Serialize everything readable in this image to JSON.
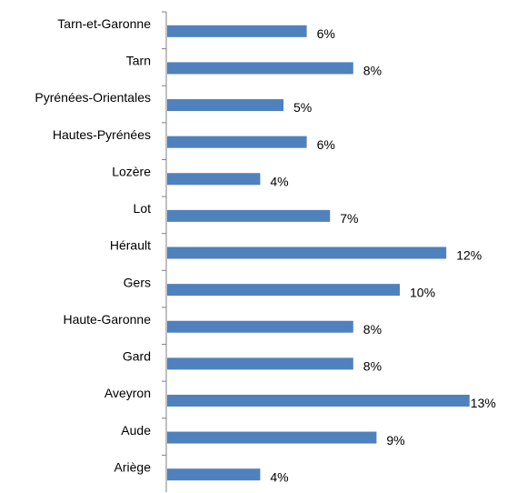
{
  "chart_data": {
    "type": "bar",
    "orientation": "horizontal",
    "title": "",
    "xlabel": "",
    "ylabel": "",
    "xlim": [
      0,
      13
    ],
    "grid": false,
    "legend": "none",
    "bar_color": "#4F81BD",
    "categories": [
      "Ariège",
      "Aude",
      "Aveyron",
      "Gard",
      "Haute-Garonne",
      "Gers",
      "Hérault",
      "Lot",
      "Lozère",
      "Hautes-Pyrénées",
      "Pyrénées-Orientales",
      "Tarn",
      "Tarn-et-Garonne"
    ],
    "values": [
      4,
      9,
      13,
      8,
      8,
      10,
      12,
      7,
      4,
      6,
      5,
      8,
      6
    ],
    "value_labels": [
      "4%",
      "9%",
      "13%",
      "8%",
      "8%",
      "10%",
      "12%",
      "7%",
      "4%",
      "6%",
      "5%",
      "8%",
      "6%"
    ]
  }
}
